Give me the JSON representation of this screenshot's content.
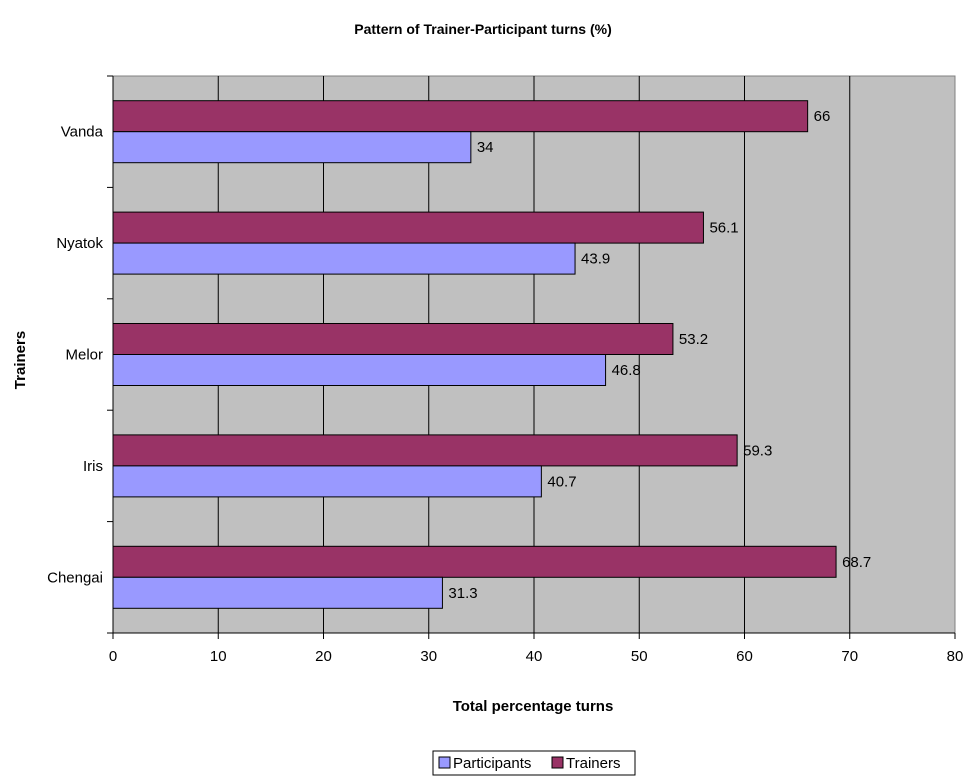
{
  "chart_data": {
    "type": "bar",
    "orientation": "horizontal",
    "title": "Pattern of Trainer-Participant turns (%)",
    "xlabel": "Total percentage turns",
    "ylabel": "Trainers",
    "categories": [
      "Vanda",
      "Nyatok",
      "Melor",
      "Iris",
      "Chengai"
    ],
    "series": [
      {
        "name": "Trainers",
        "color": "#993366",
        "values": [
          66,
          56.1,
          53.2,
          59.3,
          68.7
        ]
      },
      {
        "name": "Participants",
        "color": "#9999ff",
        "values": [
          34,
          43.9,
          46.8,
          40.7,
          31.3
        ]
      }
    ],
    "xlim": [
      0,
      80
    ],
    "xticks": [
      0,
      10,
      20,
      30,
      40,
      50,
      60,
      70,
      80
    ],
    "grid": true,
    "plot_background": "#c0c0c0",
    "legend": {
      "placement": "bottom",
      "order": [
        "Participants",
        "Trainers"
      ]
    }
  }
}
